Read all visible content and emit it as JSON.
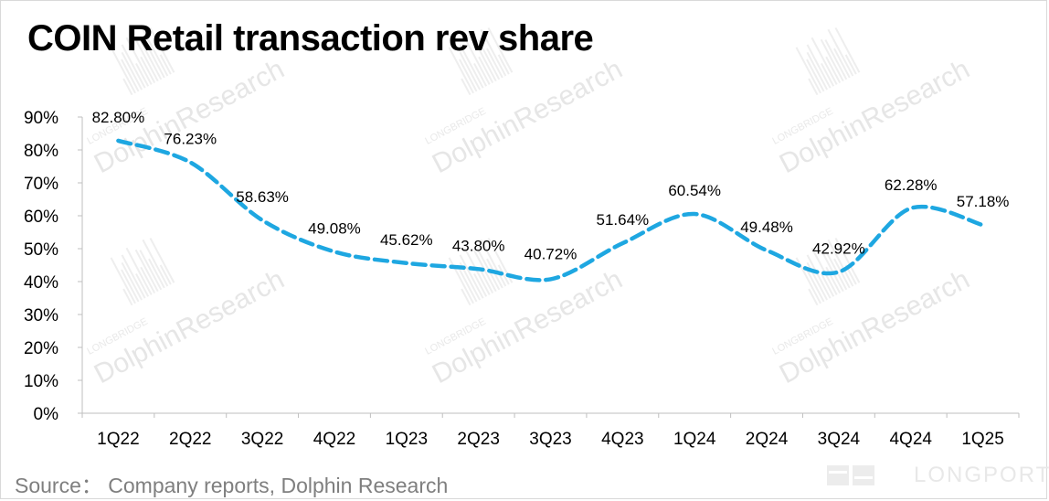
{
  "title": "COIN Retail transaction rev share",
  "source": "Source：  Company reports, Dolphin Research",
  "watermark": {
    "brand": "DolphinResearch",
    "sub": "LONGBRIDGE",
    "logo": "LONGPORT"
  },
  "colors": {
    "series": "#1ea7e1",
    "axis": "#bfbfbf",
    "text": "#000000",
    "source": "#7f7f7f"
  },
  "chart_data": {
    "type": "line",
    "title": "COIN Retail transaction rev share",
    "categories": [
      "1Q22",
      "2Q22",
      "3Q22",
      "4Q22",
      "1Q23",
      "2Q23",
      "3Q23",
      "4Q23",
      "1Q24",
      "2Q24",
      "3Q24",
      "4Q24",
      "1Q25"
    ],
    "series": [
      {
        "name": "Retail transaction rev share",
        "values": [
          82.8,
          76.23,
          58.63,
          49.08,
          45.62,
          43.8,
          40.72,
          51.64,
          60.54,
          49.48,
          42.92,
          62.28,
          57.18
        ],
        "labels": [
          "82.80%",
          "76.23%",
          "58.63%",
          "49.08%",
          "45.62%",
          "43.80%",
          "40.72%",
          "51.64%",
          "60.54%",
          "49.48%",
          "42.92%",
          "62.28%",
          "57.18%"
        ],
        "line_style": "dashed-smooth"
      }
    ],
    "y_ticks": [
      "0%",
      "10%",
      "20%",
      "30%",
      "40%",
      "50%",
      "60%",
      "70%",
      "80%",
      "90%"
    ],
    "ylim": [
      0,
      90
    ],
    "xlabel": "",
    "ylabel": "",
    "grid": false,
    "legend": "none"
  }
}
